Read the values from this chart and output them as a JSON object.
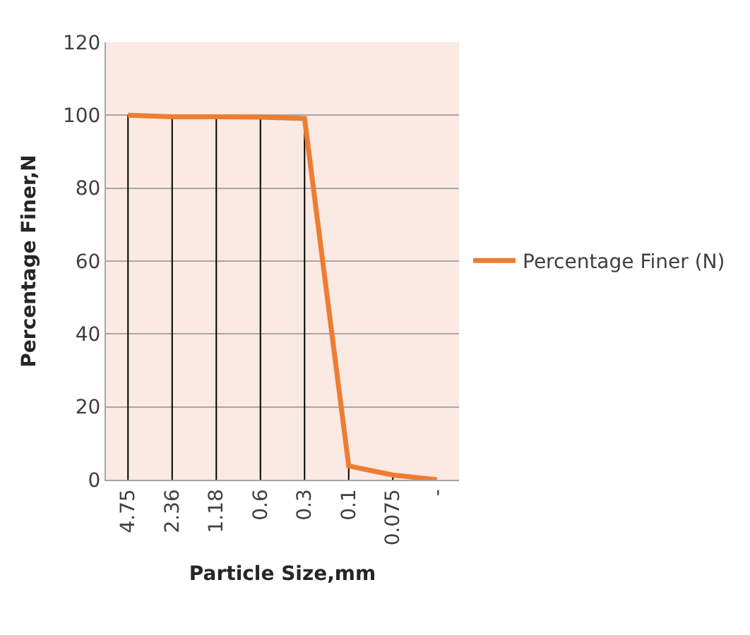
{
  "chart_data": {
    "type": "line",
    "xlabel": "Particle Size,mm",
    "ylabel": "Percentage Finer,N",
    "categories": [
      "4.75",
      "2.36",
      "1.18",
      "0.6",
      "0.3",
      "0.1",
      "0.075",
      "-"
    ],
    "series": [
      {
        "name": "Percentage Finer (N)",
        "color": "#ed7d31",
        "values": [
          100,
          99.6,
          99.6,
          99.5,
          99.1,
          3.8,
          1.3,
          0
        ]
      }
    ],
    "ylim": [
      0,
      120
    ],
    "yticks": [
      0,
      20,
      40,
      60,
      80,
      100,
      120
    ],
    "grid": true,
    "legend": "right",
    "marker": "none",
    "line_style": "solid"
  }
}
